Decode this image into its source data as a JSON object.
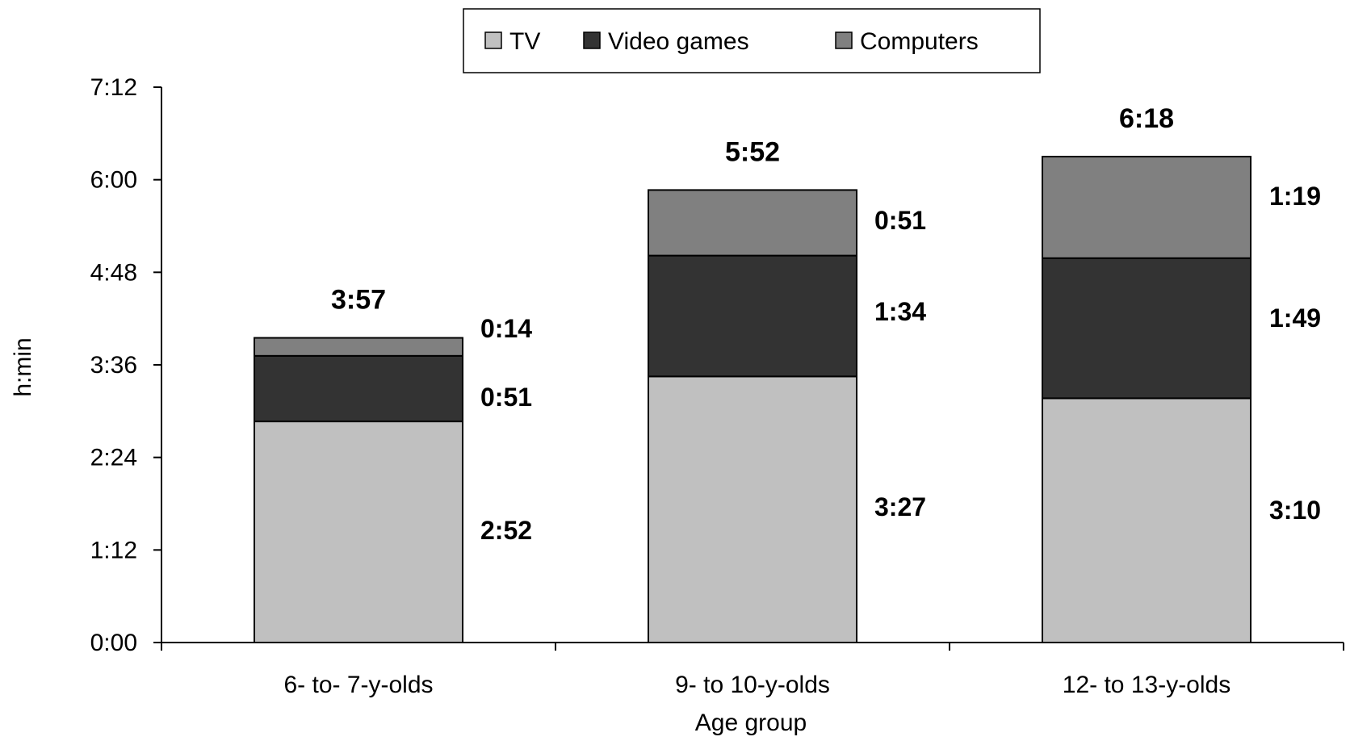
{
  "chart_data": {
    "type": "bar",
    "stacked": true,
    "xlabel": "Age group",
    "ylabel": "h:min",
    "ylim_minutes": [
      0,
      432
    ],
    "y_ticks": [
      {
        "label": "0:00",
        "minutes": 0
      },
      {
        "label": "1:12",
        "minutes": 72
      },
      {
        "label": "2:24",
        "minutes": 144
      },
      {
        "label": "3:36",
        "minutes": 216
      },
      {
        "label": "4:48",
        "minutes": 288
      },
      {
        "label": "6:00",
        "minutes": 360
      },
      {
        "label": "7:12",
        "minutes": 432
      }
    ],
    "categories": [
      "6- to- 7-y-olds",
      "9- to 10-y-olds",
      "12- to 13-y-olds"
    ],
    "series": [
      {
        "name": "TV",
        "color": "#c0c0c0",
        "values": [
          172,
          207,
          190
        ],
        "labels": [
          "2:52",
          "3:27",
          "3:10"
        ]
      },
      {
        "name": "Video games",
        "color": "#333333",
        "values": [
          51,
          94,
          109
        ],
        "labels": [
          "0:51",
          "1:34",
          "1:49"
        ]
      },
      {
        "name": "Computers",
        "color": "#808080",
        "values": [
          14,
          51,
          79
        ],
        "labels": [
          "0:14",
          "0:51",
          "1:19"
        ]
      }
    ],
    "totals": [
      "3:57",
      "5:52",
      "6:18"
    ],
    "legend_position": "top",
    "grid": false
  }
}
